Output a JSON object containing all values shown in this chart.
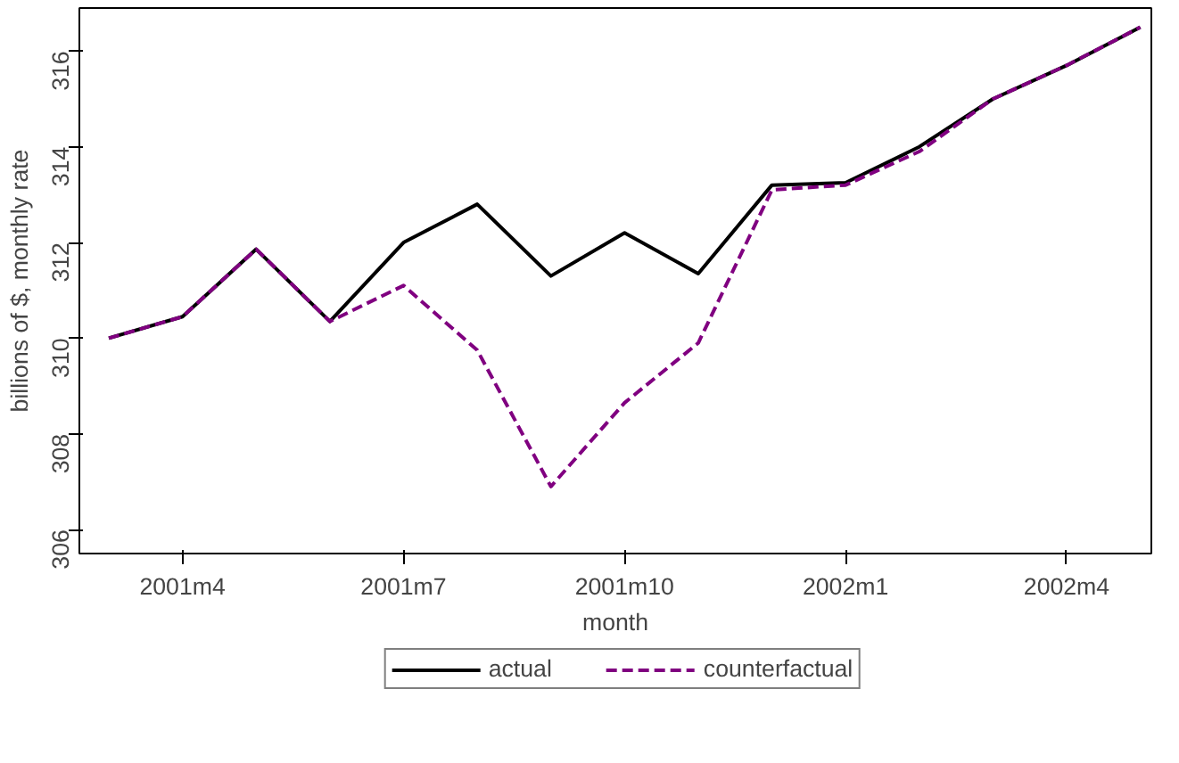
{
  "chart_data": {
    "type": "line",
    "xlabel": "month",
    "ylabel": "billions of $, monthly rate",
    "categories": [
      null,
      "2001m4",
      null,
      null,
      "2001m7",
      null,
      null,
      "2001m10",
      null,
      null,
      "2002m1",
      null,
      null,
      "2002m4",
      null
    ],
    "ylim": [
      305.5,
      316.9
    ],
    "yticks": [
      306,
      308,
      310,
      312,
      314,
      316
    ],
    "series": [
      {
        "name": "actual",
        "color": "#000000",
        "line_style": "solid",
        "values": [
          310.0,
          310.45,
          311.86,
          310.35,
          312.0,
          312.8,
          311.3,
          312.2,
          311.35,
          313.2,
          313.25,
          314.0,
          315.0,
          315.7,
          316.5
        ]
      },
      {
        "name": "counterfactual",
        "color": "#800080",
        "line_style": "dashed",
        "values": [
          310.0,
          310.45,
          311.86,
          310.35,
          311.1,
          309.75,
          306.9,
          308.65,
          309.9,
          313.1,
          313.2,
          313.9,
          315.0,
          315.7,
          316.5
        ]
      }
    ],
    "grid": false,
    "legend": "bottom",
    "marker": "none"
  }
}
